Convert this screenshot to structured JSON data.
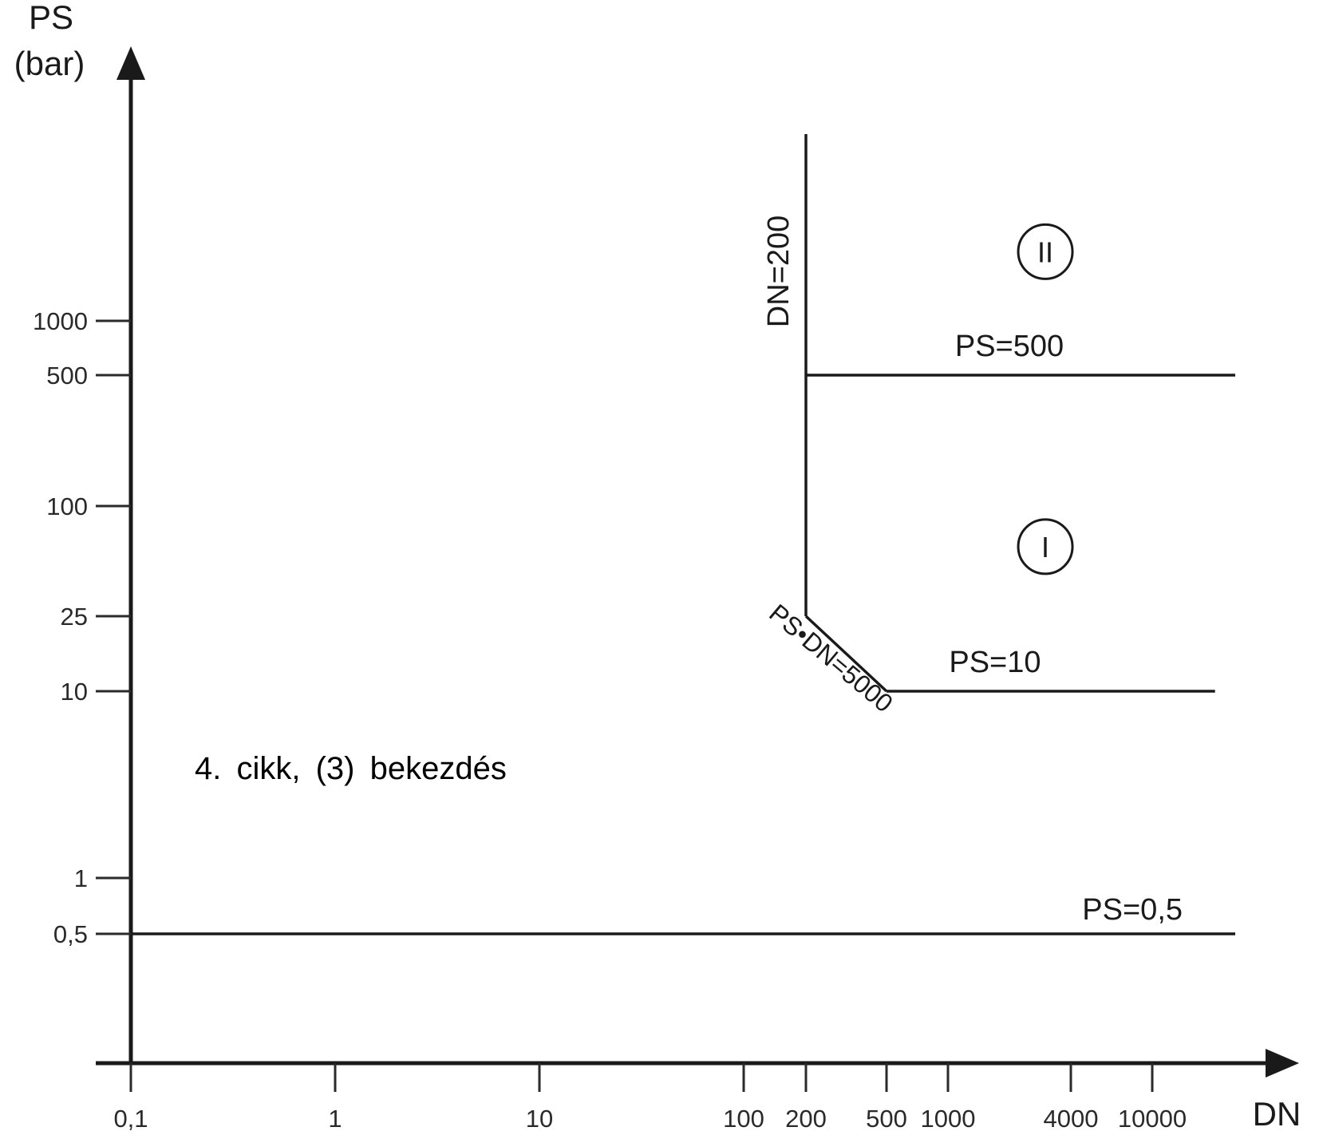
{
  "chart_data": {
    "type": "line",
    "xlabel": "DN",
    "ylabel_line1": "PS",
    "ylabel_line2": "(bar)",
    "x_scale": "log",
    "y_scale": "log",
    "x_ticks": [
      {
        "value": 0.1,
        "label": "0,1"
      },
      {
        "value": 1,
        "label": "1"
      },
      {
        "value": 10,
        "label": "10"
      },
      {
        "value": 100,
        "label": "100"
      },
      {
        "value": 200,
        "label": "200"
      },
      {
        "value": 500,
        "label": "500"
      },
      {
        "value": 1000,
        "label": "1000"
      },
      {
        "value": 4000,
        "label": "4000"
      },
      {
        "value": 10000,
        "label": "10000"
      }
    ],
    "y_ticks": [
      {
        "value": 0.5,
        "label": "0,5"
      },
      {
        "value": 1,
        "label": "1"
      },
      {
        "value": 10,
        "label": "10"
      },
      {
        "value": 25,
        "label": "25"
      },
      {
        "value": 100,
        "label": "100"
      },
      {
        "value": 500,
        "label": "500"
      },
      {
        "value": 1000,
        "label": "1000"
      }
    ],
    "boundaries": [
      {
        "label": "PS=0,5",
        "points": [
          [
            0.1,
            0.5
          ],
          [
            25000,
            0.5
          ]
        ]
      },
      {
        "label": "DN=200",
        "points": [
          [
            200,
            25
          ],
          [
            200,
            6500
          ]
        ]
      },
      {
        "label": "PS=500",
        "points": [
          [
            200,
            500
          ],
          [
            25000,
            500
          ]
        ]
      },
      {
        "label": "PS•DN=5000",
        "points": [
          [
            200,
            25
          ],
          [
            500,
            10
          ]
        ]
      },
      {
        "label": "PS=10",
        "points": [
          [
            500,
            10
          ],
          [
            20000,
            10
          ]
        ]
      }
    ],
    "regions": [
      {
        "label": "II",
        "x": 3000,
        "y": 2000
      },
      {
        "label": "I",
        "x": 3000,
        "y": 60
      }
    ],
    "annotation": "4. cikk, (3) bekezdés"
  }
}
